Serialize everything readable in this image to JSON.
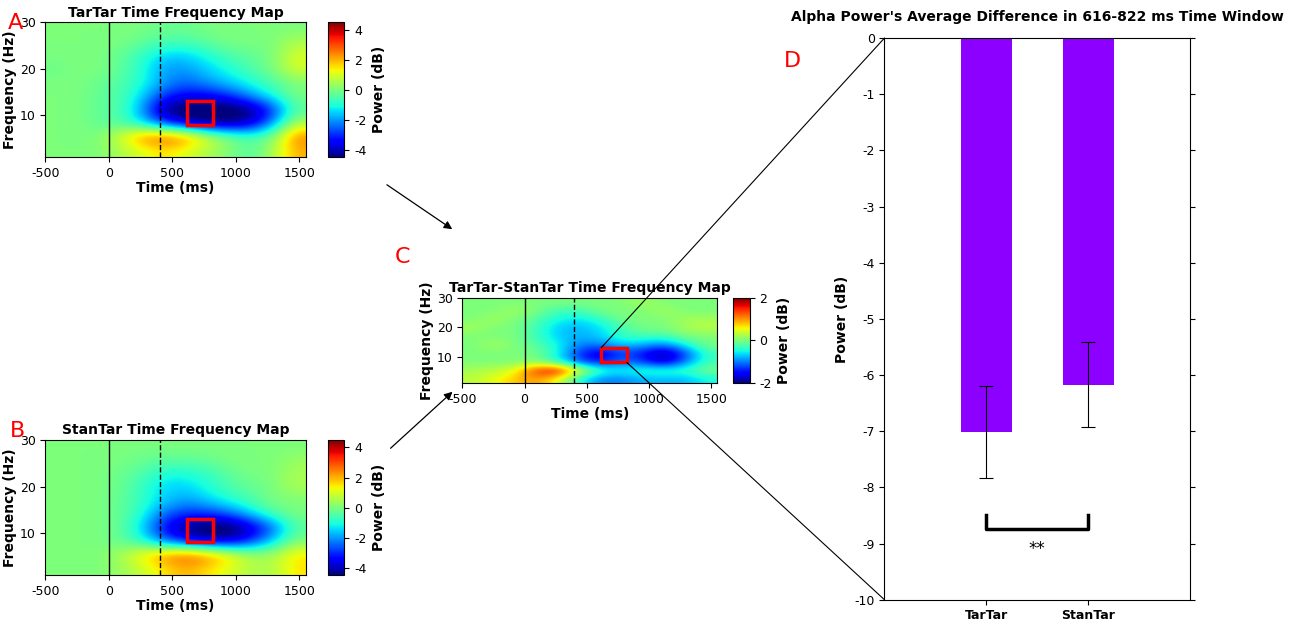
{
  "chart_data": [
    {
      "type": "heatmap",
      "panel": "A",
      "title": "TarTar Time Frequency Map",
      "x_label": "Time (ms)",
      "y_label": "Frequency (Hz)",
      "xlim": [
        -500,
        1550
      ],
      "ylim": [
        1,
        30
      ],
      "xticks": [
        -500,
        0,
        500,
        1000,
        1500
      ],
      "yticks": [
        10,
        20,
        30
      ],
      "event_lines": [
        {
          "x": 0,
          "line_style": "solid"
        },
        {
          "x": 400,
          "line_style": "dashed"
        }
      ],
      "highlight": {
        "x": [
          616,
          822
        ],
        "y": [
          8,
          13
        ],
        "color": "#ff0000"
      },
      "colorbar": {
        "label": "Power (dB)",
        "range": [
          -4.5,
          4.5
        ],
        "ticks": [
          -4,
          -2,
          0,
          2,
          4
        ]
      },
      "cells": [
        [
          0,
          0,
          0,
          0.5,
          1,
          1.5,
          1,
          0.5,
          0,
          -0.5,
          0.5,
          2
        ],
        [
          0,
          0,
          0,
          1,
          2.5,
          3,
          2.5,
          1,
          0,
          -0.5,
          0,
          2.5
        ],
        [
          0,
          0,
          -0.3,
          -0.5,
          -1.5,
          -3,
          -4,
          -4.5,
          -4.5,
          -4,
          -2,
          0.5
        ],
        [
          0,
          0,
          -0.3,
          -0.5,
          -2,
          -4.5,
          -5,
          -5,
          -5,
          -4.5,
          -3,
          -0.5
        ],
        [
          0,
          0,
          -0.3,
          -0.5,
          -1.5,
          -3,
          -3.5,
          -3.5,
          -3,
          -2,
          -1,
          0
        ],
        [
          0,
          0,
          -0.2,
          -0.5,
          -1,
          -2,
          -2.5,
          -2,
          -1.5,
          -1,
          -0.5,
          0
        ],
        [
          -0.2,
          0,
          0,
          -0.3,
          -1,
          -2,
          -2,
          -1.5,
          -1,
          -0.5,
          0,
          1
        ],
        [
          0,
          0,
          0,
          -0.3,
          -0.8,
          -1.5,
          -1.5,
          -1,
          -0.5,
          -0.3,
          0,
          1
        ],
        [
          0,
          0,
          0,
          0,
          -0.3,
          -0.5,
          -0.5,
          -0.3,
          0,
          0,
          0,
          0.5
        ],
        [
          0,
          0,
          0,
          0,
          0,
          -0.2,
          -0.2,
          0,
          0,
          0,
          0,
          0
        ]
      ]
    },
    {
      "type": "heatmap",
      "panel": "B",
      "title": "StanTar Time Frequency Map",
      "x_label": "Time (ms)",
      "y_label": "Frequency (Hz)",
      "xlim": [
        -500,
        1550
      ],
      "ylim": [
        1,
        30
      ],
      "xticks": [
        -500,
        0,
        500,
        1000,
        1500
      ],
      "yticks": [
        10,
        20,
        30
      ],
      "event_lines": [
        {
          "x": 0,
          "line_style": "solid"
        },
        {
          "x": 400,
          "line_style": "dashed"
        }
      ],
      "highlight": {
        "x": [
          616,
          822
        ],
        "y": [
          8,
          13
        ],
        "color": "#ff0000"
      },
      "colorbar": {
        "label": "Power (dB)",
        "range": [
          -4.5,
          4.5
        ],
        "ticks": [
          -4,
          -2,
          0,
          2,
          4
        ]
      },
      "cells": [
        [
          0,
          0,
          0,
          0.3,
          0.8,
          1.5,
          2,
          1.5,
          1,
          0.5,
          0.5,
          1.5
        ],
        [
          0,
          0,
          0,
          0.5,
          1.5,
          2.5,
          3,
          2.5,
          1.5,
          0.5,
          0.5,
          1.5
        ],
        [
          0,
          0,
          0,
          -0.3,
          -1,
          -2.5,
          -3.5,
          -4,
          -4,
          -3,
          -1.5,
          0
        ],
        [
          0,
          0,
          0,
          -0.3,
          -1.5,
          -3.5,
          -4.5,
          -5,
          -5,
          -4,
          -2.5,
          -0.5
        ],
        [
          0,
          0,
          0,
          -0.3,
          -1,
          -2.5,
          -3,
          -3,
          -2.5,
          -1.5,
          -0.5,
          0
        ],
        [
          0,
          0,
          0,
          -0.3,
          -0.8,
          -1.5,
          -2,
          -1.5,
          -1,
          -0.5,
          0,
          0
        ],
        [
          0,
          0,
          0,
          -0.2,
          -0.8,
          -1.5,
          -1.5,
          -1,
          -0.5,
          -0.3,
          0,
          0.5
        ],
        [
          0,
          0,
          0,
          -0.2,
          -0.5,
          -1,
          -1,
          -0.8,
          -0.3,
          0,
          0,
          0.5
        ],
        [
          0,
          0,
          0,
          0,
          -0.2,
          -0.3,
          -0.3,
          -0.2,
          0,
          0,
          0,
          0.3
        ],
        [
          0,
          0,
          0,
          0,
          0,
          0,
          0,
          0,
          0,
          0,
          0,
          0
        ]
      ]
    },
    {
      "type": "heatmap",
      "panel": "C",
      "title": "TarTar-StanTar Time Frequency Map",
      "x_label": "Time (ms)",
      "y_label": "Frequency (Hz)",
      "xlim": [
        -500,
        1550
      ],
      "ylim": [
        1,
        30
      ],
      "xticks": [
        -500,
        0,
        500,
        1000,
        1500
      ],
      "yticks": [
        10,
        20,
        30
      ],
      "event_lines": [
        {
          "x": 0,
          "line_style": "solid"
        },
        {
          "x": 400,
          "line_style": "dashed"
        }
      ],
      "highlight": {
        "x": [
          616,
          822
        ],
        "y": [
          8,
          13
        ],
        "color": "#ff0000"
      },
      "colorbar": {
        "label": "Power (dB)",
        "range": [
          -2,
          2
        ],
        "ticks": [
          -2,
          0,
          2
        ]
      },
      "cells": [
        [
          0.3,
          0.5,
          0.8,
          1,
          0.5,
          -0.5,
          -1,
          -1,
          -0.8,
          -0.8,
          -0.8,
          -0.5
        ],
        [
          0.2,
          0.3,
          0.5,
          1.5,
          1.8,
          0.5,
          -0.3,
          -0.5,
          -0.3,
          -0.3,
          -0.3,
          0
        ],
        [
          0,
          0,
          0,
          0,
          -0.5,
          -1.2,
          -1.5,
          -1,
          -1.3,
          -1.8,
          -1,
          -0.3
        ],
        [
          0,
          0,
          0,
          0,
          -0.5,
          -1.3,
          -1.8,
          -1.2,
          -1.5,
          -2,
          -1.2,
          -0.3
        ],
        [
          0,
          0.2,
          0,
          -0.2,
          -0.5,
          -1,
          -1,
          -0.7,
          -0.8,
          -1,
          -0.5,
          0
        ],
        [
          0,
          0,
          0,
          -0.3,
          -0.7,
          -0.8,
          -0.7,
          -0.3,
          -0.3,
          -0.3,
          0,
          0
        ],
        [
          0.2,
          0,
          0,
          -0.3,
          -0.7,
          -0.8,
          -0.6,
          -0.3,
          0,
          0,
          0.2,
          0.3
        ],
        [
          0,
          0.2,
          0,
          -0.2,
          -0.5,
          -0.6,
          -0.4,
          0,
          0,
          0,
          0.2,
          0.2
        ],
        [
          0,
          0,
          0.2,
          0,
          -0.3,
          -0.3,
          0,
          0,
          0,
          0.2,
          0,
          0
        ],
        [
          0,
          0,
          0,
          0,
          0,
          0,
          0,
          0,
          0.2,
          0,
          0,
          0
        ]
      ]
    },
    {
      "type": "bar",
      "panel": "D",
      "title": "Alpha Power's Average Difference in 616-822 ms Time Window",
      "y_label": "Power (dB)",
      "categories": [
        "TarTar",
        "StanTar"
      ],
      "values": [
        -7.02,
        -6.17
      ],
      "error": [
        0.82,
        0.76
      ],
      "color": "#8b00ff",
      "ylim": [
        -10,
        0
      ],
      "yticks": [
        -10,
        -9,
        -8,
        -7,
        -6,
        -5,
        -4,
        -3,
        -2,
        -1,
        0
      ],
      "annotation": "**"
    }
  ]
}
